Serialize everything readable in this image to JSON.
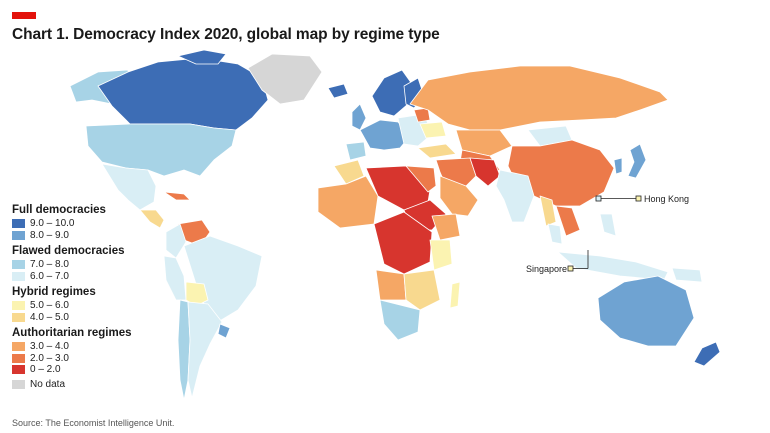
{
  "accent_color": "#e3120b",
  "title": "Chart 1. Democracy Index 2020, global map by regime type",
  "source": "Source: The Economist Intelligence Unit.",
  "colors": {
    "full_9_10": "#3d6db5",
    "full_8_9": "#6fa3d2",
    "flawed_7_8": "#a7d3e6",
    "flawed_6_7": "#d9eef5",
    "hybrid_5_6": "#fbf3b1",
    "hybrid_4_5": "#f8d98f",
    "auth_3_4": "#f5a765",
    "auth_2_3": "#ec7a4a",
    "auth_0_2": "#d7352e",
    "no_data": "#d6d6d6"
  },
  "legend": [
    {
      "group": "Full democracies",
      "items": [
        {
          "label": "9.0 – 10.0",
          "color_key": "full_9_10"
        },
        {
          "label": "8.0 – 9.0",
          "color_key": "full_8_9"
        }
      ]
    },
    {
      "group": "Flawed democracies",
      "items": [
        {
          "label": "7.0 – 8.0",
          "color_key": "flawed_7_8"
        },
        {
          "label": "6.0 – 7.0",
          "color_key": "flawed_6_7"
        }
      ]
    },
    {
      "group": "Hybrid regimes",
      "items": [
        {
          "label": "5.0 – 6.0",
          "color_key": "hybrid_5_6"
        },
        {
          "label": "4.0 – 5.0",
          "color_key": "hybrid_4_5"
        }
      ]
    },
    {
      "group": "Authoritarian regimes",
      "items": [
        {
          "label": "3.0 – 4.0",
          "color_key": "auth_3_4"
        },
        {
          "label": "2.0 – 3.0",
          "color_key": "auth_2_3"
        },
        {
          "label": "0 – 2.0",
          "color_key": "auth_0_2"
        }
      ]
    }
  ],
  "no_data_label": "No data",
  "callouts": {
    "hong_kong": "Hong Kong",
    "singapore": "Singapore"
  }
}
